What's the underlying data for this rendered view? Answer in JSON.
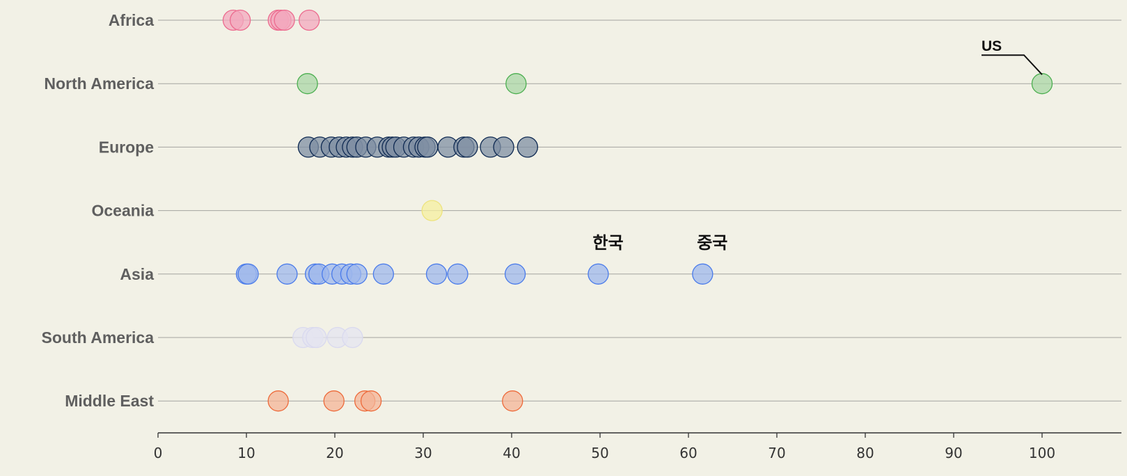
{
  "chart_data": {
    "type": "scatter",
    "title": "",
    "xlabel": "",
    "ylabel": "",
    "xlim": [
      0,
      109
    ],
    "x_ticks": [
      0,
      10,
      20,
      30,
      40,
      50,
      60,
      70,
      80,
      90,
      100
    ],
    "grid": "horizontal lines per category",
    "legend": "none",
    "categories": [
      "Africa",
      "North America",
      "Europe",
      "Oceania",
      "Asia",
      "South America",
      "Middle East"
    ],
    "series": [
      {
        "category": "Africa",
        "color": "#ec6c8f",
        "fill": "#f3a8bd",
        "values": [
          8.5,
          9.3,
          13.6,
          13.9,
          14.3,
          17.1
        ]
      },
      {
        "category": "North America",
        "color": "#4caf50",
        "fill": "#a9d6a6",
        "values": [
          16.9,
          40.5,
          100
        ]
      },
      {
        "category": "Europe",
        "color": "#0f2a52",
        "fill": "#7f8fa3",
        "values": [
          17.0,
          18.3,
          19.6,
          20.5,
          21.3,
          22.0,
          22.5,
          23.5,
          24.8,
          26.1,
          26.5,
          26.9,
          27.8,
          28.9,
          29.5,
          30.2,
          30.5,
          32.8,
          34.6,
          35.0,
          37.6,
          39.1,
          41.8
        ]
      },
      {
        "category": "Oceania",
        "color": "#ede37e",
        "fill": "#f6ef9f",
        "values": [
          31.0
        ]
      },
      {
        "category": "Asia",
        "color": "#4a7bea",
        "fill": "#9db7ec",
        "values": [
          10.0,
          10.2,
          14.6,
          17.8,
          18.2,
          19.7,
          20.8,
          21.8,
          22.5,
          25.5,
          31.5,
          33.9,
          40.4,
          49.8,
          61.6
        ]
      },
      {
        "category": "South America",
        "color": "#d9d9ef",
        "fill": "#e4e4f0",
        "values": [
          16.4,
          17.5,
          17.9,
          20.3,
          22.0
        ]
      },
      {
        "category": "Middle East",
        "color": "#ed6a3a",
        "fill": "#f4b497",
        "values": [
          13.6,
          19.9,
          23.4,
          24.1,
          40.1
        ]
      }
    ],
    "annotations": [
      {
        "text": "US",
        "category": "North America",
        "x": 100,
        "style": "leader"
      },
      {
        "text": "한국",
        "category": "Asia",
        "x": 49.8,
        "style": "above"
      },
      {
        "text": "중국",
        "category": "Asia",
        "x": 61.6,
        "style": "above"
      }
    ]
  }
}
